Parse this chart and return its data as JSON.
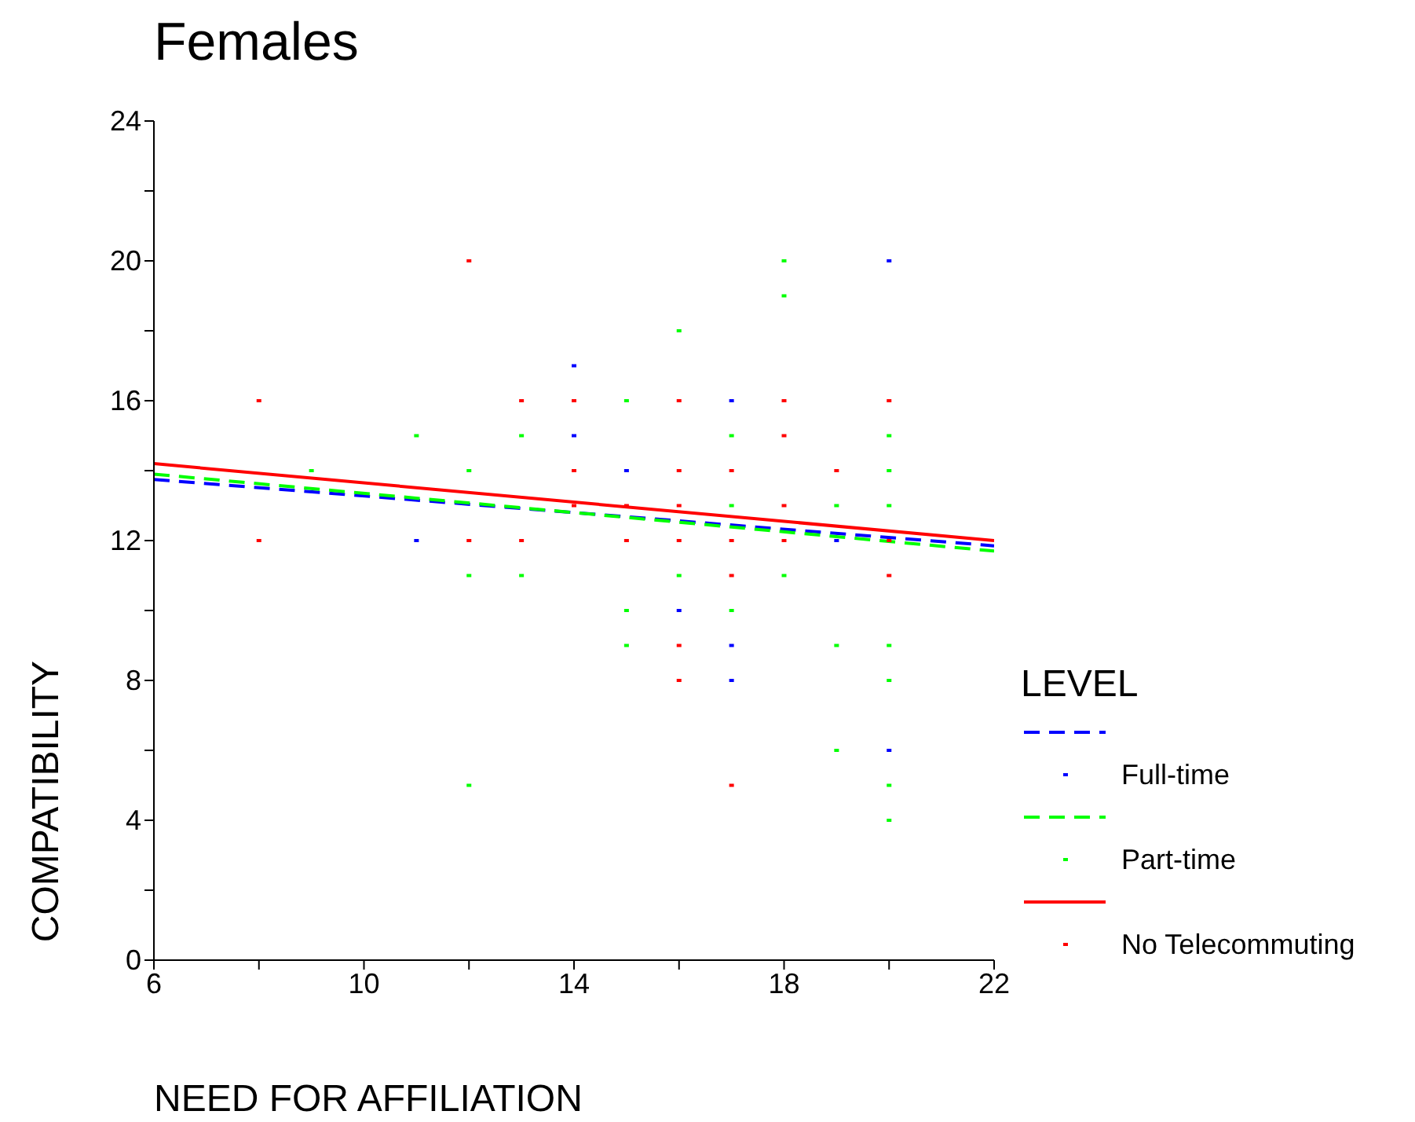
{
  "chart_data": {
    "type": "scatter",
    "title": "Females",
    "xlabel": "NEED FOR AFFILIATION",
    "ylabel": "COMPATIBILITY",
    "legend_title": "LEVEL",
    "legend": "right",
    "grid": false,
    "marker": "square",
    "xlim": [
      6,
      22
    ],
    "xticks": [
      6,
      {
        "value": 8,
        "label": null
      },
      10,
      {
        "value": 12,
        "label": null
      },
      14,
      {
        "value": 16,
        "label": null
      },
      18,
      {
        "value": 20,
        "label": null
      },
      22
    ],
    "ylim": [
      0,
      24
    ],
    "yticks": [
      0,
      {
        "value": 2,
        "label": null
      },
      4,
      {
        "value": 6,
        "label": null
      },
      8,
      {
        "value": 10,
        "label": null
      },
      12,
      {
        "value": 14,
        "label": null
      },
      16,
      {
        "value": 18,
        "label": null
      },
      20,
      {
        "value": 22,
        "label": null
      },
      24
    ],
    "series": [
      {
        "type": "line",
        "marker": "none",
        "color": "#0000ff",
        "line_style": "dashed",
        "x": [
          6,
          22
        ],
        "values": [
          13.75,
          11.85
        ]
      },
      {
        "type": "line",
        "marker": "none",
        "color": "#00ff00",
        "line_style": "dashed",
        "x": [
          6,
          22
        ],
        "values": [
          13.9,
          11.7
        ]
      },
      {
        "type": "line",
        "marker": "none",
        "color": "#ff0000",
        "line_style": "solid",
        "x": [
          6,
          22
        ],
        "values": [
          14.2,
          12
        ]
      },
      {
        "name": "Full-time",
        "color": "#0000ff",
        "x": [
          11,
          14,
          14,
          15,
          16,
          17,
          17,
          17,
          19,
          20,
          20
        ],
        "values": [
          12,
          17,
          15,
          14,
          10,
          16,
          9,
          8,
          12,
          20,
          6
        ]
      },
      {
        "name": "Part-time",
        "color": "#00ff00",
        "x": [
          9,
          11,
          12,
          12,
          12,
          13,
          13,
          15,
          15,
          15,
          16,
          16,
          17,
          17,
          17,
          18,
          18,
          18,
          19,
          19,
          19,
          20,
          20,
          20,
          20,
          20,
          20,
          20
        ],
        "values": [
          14,
          15,
          14,
          11,
          5,
          15,
          11,
          16,
          10,
          9,
          18,
          11,
          15,
          13,
          10,
          20,
          19,
          11,
          13,
          9,
          6,
          14,
          13,
          9,
          8,
          5,
          4,
          15
        ]
      },
      {
        "name": "No Telecommuting",
        "color": "#ff0000",
        "x": [
          8,
          8,
          12,
          12,
          13,
          13,
          14,
          14,
          14,
          15,
          15,
          16,
          16,
          16,
          16,
          16,
          16,
          17,
          17,
          17,
          17,
          18,
          18,
          18,
          18,
          19,
          20,
          20,
          20
        ],
        "values": [
          16,
          12,
          20,
          12,
          16,
          12,
          16,
          14,
          13,
          13,
          12,
          16,
          14,
          13,
          12,
          9,
          8,
          14,
          12,
          11,
          5,
          16,
          15,
          13,
          12,
          14,
          16,
          12,
          11
        ]
      }
    ]
  }
}
